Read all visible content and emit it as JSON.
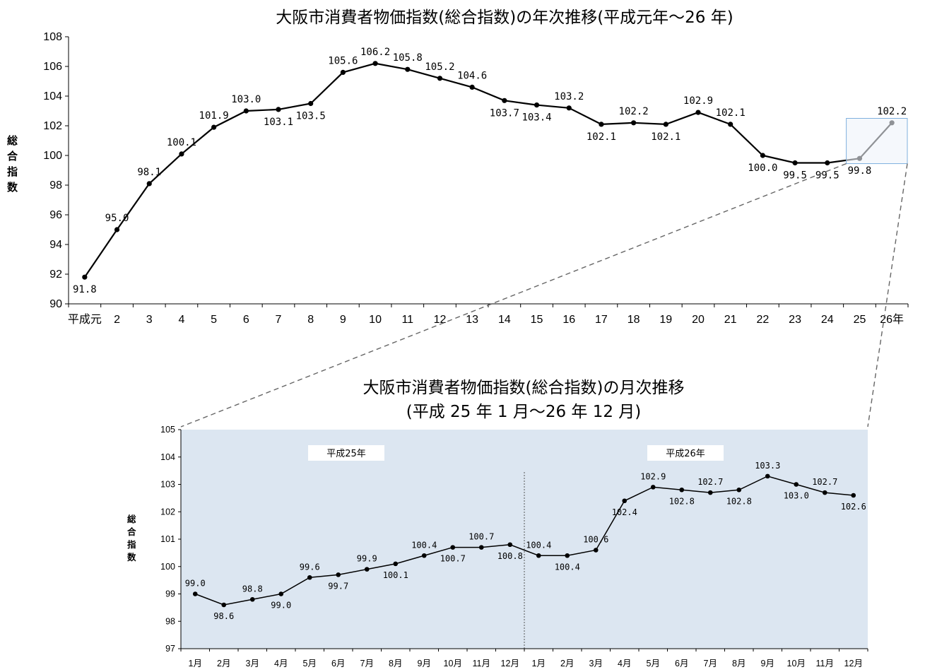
{
  "chart_data": [
    {
      "type": "line",
      "title": "大阪市消費者物価指数(総合指数)の年次推移(平成元年～26 年)",
      "ylabel": "総合指数",
      "xlabel": "",
      "ylim": [
        90,
        108
      ],
      "yticks": [
        "90",
        "92",
        "94",
        "96",
        "98",
        "100",
        "102",
        "104",
        "106",
        "108"
      ],
      "categories": [
        "平成元",
        "2",
        "3",
        "4",
        "5",
        "6",
        "7",
        "8",
        "9",
        "10",
        "11",
        "12",
        "13",
        "14",
        "15",
        "16",
        "17",
        "18",
        "19",
        "20",
        "21",
        "22",
        "23",
        "24",
        "25",
        "26年"
      ],
      "values": [
        91.8,
        95.0,
        98.1,
        100.1,
        101.9,
        103.0,
        103.1,
        103.5,
        105.6,
        106.2,
        105.8,
        105.2,
        104.6,
        103.7,
        103.4,
        103.2,
        102.1,
        102.2,
        102.1,
        102.9,
        102.1,
        100.0,
        99.5,
        99.5,
        99.8,
        102.2
      ],
      "data_labels": [
        "91.8",
        "95.0",
        "98.1",
        "100.1",
        "101.9",
        "103.0",
        "103.1",
        "103.5",
        "105.6",
        "106.2",
        "105.8",
        "105.2",
        "104.6",
        "103.7",
        "103.4",
        "103.2",
        "102.1",
        "102.2",
        "102.1",
        "102.9",
        "102.1",
        "100.0",
        "99.5",
        "99.5",
        "99.8",
        "102.2"
      ],
      "grid": false,
      "legend": false
    },
    {
      "type": "line",
      "title": "大阪市消費者物価指数(総合指数)の月次推移",
      "subtitle": "(平成 25 年 1 月～26 年 12 月)",
      "ylabel": "総合指数",
      "xlabel": "",
      "ylim": [
        97,
        105
      ],
      "yticks": [
        "97",
        "98",
        "99",
        "100",
        "101",
        "102",
        "103",
        "104",
        "105"
      ],
      "categories": [
        "1月",
        "2月",
        "3月",
        "4月",
        "5月",
        "6月",
        "7月",
        "8月",
        "9月",
        "10月",
        "11月",
        "12月",
        "1月",
        "2月",
        "3月",
        "4月",
        "5月",
        "6月",
        "7月",
        "8月",
        "9月",
        "10月",
        "11月",
        "12月"
      ],
      "values": [
        99.0,
        98.6,
        98.8,
        99.0,
        99.6,
        99.7,
        99.9,
        100.1,
        100.4,
        100.7,
        100.7,
        100.8,
        100.4,
        100.4,
        100.6,
        102.4,
        102.9,
        102.8,
        102.7,
        102.8,
        103.3,
        103.0,
        102.7,
        102.6
      ],
      "data_labels": [
        "99.0",
        "98.6",
        "98.8",
        "99.0",
        "99.6",
        "99.7",
        "99.9",
        "100.1",
        "100.4",
        "100.7",
        "100.7",
        "100.8",
        "100.4",
        "100.4",
        "100.6",
        "102.4",
        "102.9",
        "102.8",
        "102.7",
        "102.8",
        "103.3",
        "103.0",
        "102.7",
        "102.6"
      ],
      "year_bands": [
        "平成25年",
        "平成26年"
      ],
      "background_color": "#dce6f1",
      "grid": false,
      "legend": false
    }
  ]
}
